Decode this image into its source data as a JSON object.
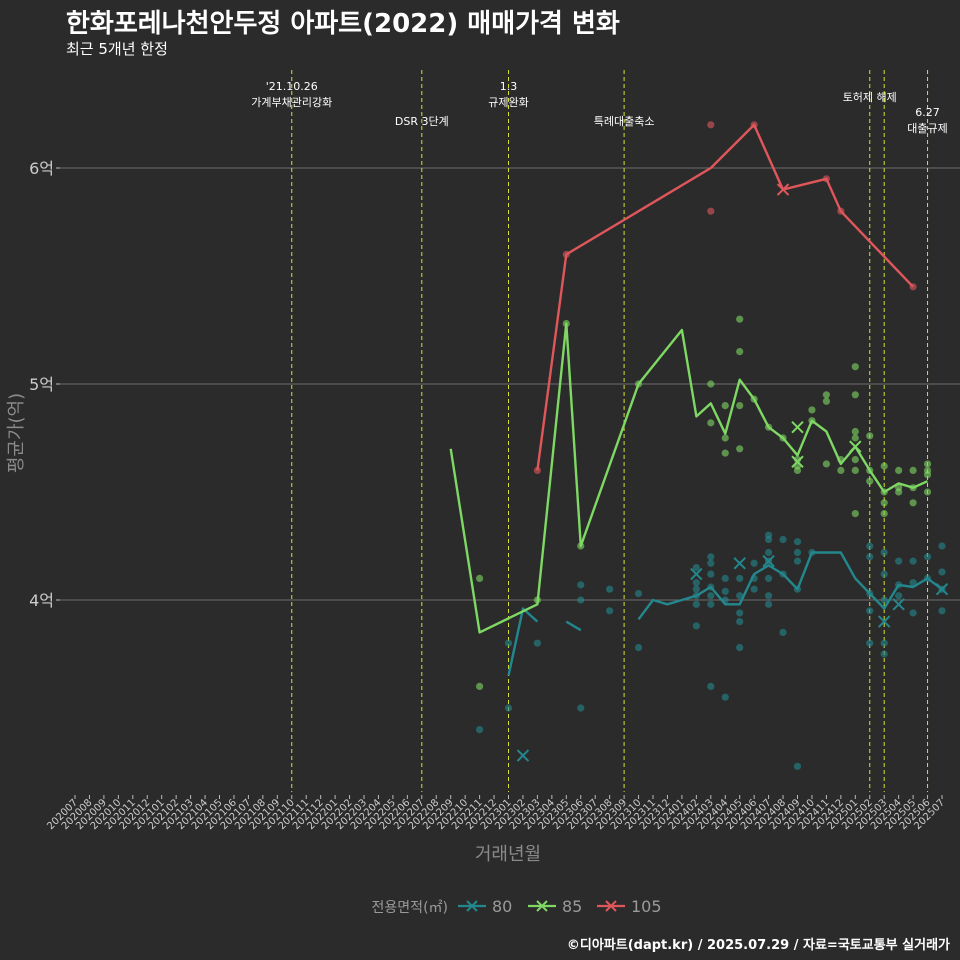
{
  "title": "한화포레나천안두정 아파트(2022) 매매가격 변화",
  "subtitle": "최근 5개년 한정",
  "caption": "©디아파트(dapt.kr) / 2025.07.29 / 자료=국토교통부 실거래가",
  "colors": {
    "background": "#2b2b2b",
    "grid": "#6e6e6e",
    "event_line": "#d4e030",
    "s80": "#23888e",
    "s85": "#7ed863",
    "s105": "#e0575b"
  },
  "chart_data": {
    "type": "line",
    "xlabel": "거래년월",
    "ylabel": "평균가(억)",
    "x_categories": [
      "202007",
      "202008",
      "202009",
      "202010",
      "202011",
      "202012",
      "202101",
      "202102",
      "202103",
      "202104",
      "202105",
      "202106",
      "202107",
      "202108",
      "202109",
      "202110",
      "202111",
      "202112",
      "202201",
      "202202",
      "202203",
      "202204",
      "202205",
      "202206",
      "202207",
      "202208",
      "202209",
      "202210",
      "202211",
      "202212",
      "202301",
      "202302",
      "202303",
      "202304",
      "202305",
      "202306",
      "202307",
      "202308",
      "202309",
      "202310",
      "202311",
      "202312",
      "202401",
      "202402",
      "202403",
      "202404",
      "202405",
      "202406",
      "202407",
      "202408",
      "202409",
      "202410",
      "202411",
      "202412",
      "202501",
      "202502",
      "202503",
      "202504",
      "202505",
      "202506",
      "202507"
    ],
    "y_ticks": [
      {
        "value": 4,
        "label": "4억"
      },
      {
        "value": 5,
        "label": "5억"
      },
      {
        "value": 6,
        "label": "6억"
      }
    ],
    "ylim": [
      3.1,
      6.45
    ],
    "grid": true,
    "legend": {
      "title": "전용면적(㎡)",
      "position": "bottom",
      "entries": [
        "80",
        "85",
        "105"
      ]
    },
    "events": [
      {
        "month": "202110",
        "label": [
          "'21.10.26",
          "가계부채관리강화"
        ],
        "label_y": 6.36
      },
      {
        "month": "202207",
        "label": [
          "DSR 3단계"
        ],
        "label_y": 6.2
      },
      {
        "month": "202301",
        "label": [
          "1.3",
          "규제완화"
        ],
        "label_y": 6.36
      },
      {
        "month": "202309",
        "label": [
          "특례대출축소"
        ],
        "label_y": 6.2
      },
      {
        "month": "202502",
        "label": [
          "토허제 해제"
        ],
        "label_y": 6.31
      },
      {
        "month": "202503",
        "label": [],
        "label_y": 6.31
      },
      {
        "month": "202506",
        "label": [
          "6.27",
          "대출규제"
        ],
        "label_y": 6.24
      }
    ],
    "series": [
      {
        "name": "80",
        "color_key": "s80",
        "line": [
          [
            "202301",
            3.65
          ],
          [
            "202302",
            3.96
          ],
          [
            "202303",
            3.9
          ],
          null,
          [
            "202305",
            3.9
          ],
          [
            "202306",
            3.86
          ],
          null,
          [
            "202310",
            3.91
          ],
          [
            "202311",
            4.0
          ],
          [
            "202312",
            3.98
          ],
          [
            "202401",
            4.0
          ],
          [
            "202402",
            4.02
          ],
          [
            "202403",
            4.06
          ],
          [
            "202404",
            3.98
          ],
          [
            "202405",
            3.98
          ],
          [
            "202406",
            4.12
          ],
          [
            "202407",
            4.16
          ],
          [
            "202408",
            4.12
          ],
          [
            "202409",
            4.05
          ],
          [
            "202410",
            4.22
          ],
          [
            "202412",
            4.22
          ],
          [
            "202501",
            4.1
          ],
          [
            "202502",
            4.03
          ],
          [
            "202503",
            3.96
          ],
          [
            "202504",
            4.07
          ],
          [
            "202505",
            4.06
          ],
          [
            "202506",
            4.1
          ],
          [
            "202507",
            4.05
          ]
        ],
        "points": [
          [
            "202211",
            3.4
          ],
          [
            "202301",
            3.5
          ],
          [
            "202301",
            3.8
          ],
          [
            "202303",
            3.8
          ],
          [
            "202306",
            3.5
          ],
          [
            "202306",
            4.0
          ],
          [
            "202306",
            4.07
          ],
          [
            "202308",
            4.05
          ],
          [
            "202308",
            3.95
          ],
          [
            "202310",
            3.78
          ],
          [
            "202310",
            4.03
          ],
          [
            "202402",
            3.88
          ],
          [
            "202402",
            3.98
          ],
          [
            "202402",
            4.02
          ],
          [
            "202402",
            4.05
          ],
          [
            "202402",
            4.08
          ],
          [
            "202402",
            4.15
          ],
          [
            "202403",
            3.6
          ],
          [
            "202403",
            3.98
          ],
          [
            "202403",
            4.02
          ],
          [
            "202403",
            4.06
          ],
          [
            "202403",
            4.12
          ],
          [
            "202403",
            4.17
          ],
          [
            "202403",
            4.2
          ],
          [
            "202404",
            3.55
          ],
          [
            "202404",
            4.0
          ],
          [
            "202404",
            4.04
          ],
          [
            "202404",
            4.1
          ],
          [
            "202405",
            3.78
          ],
          [
            "202405",
            3.9
          ],
          [
            "202405",
            3.94
          ],
          [
            "202405",
            4.02
          ],
          [
            "202405",
            4.1
          ],
          [
            "202406",
            4.05
          ],
          [
            "202406",
            4.1
          ],
          [
            "202406",
            4.17
          ],
          [
            "202407",
            3.98
          ],
          [
            "202407",
            4.02
          ],
          [
            "202407",
            4.1
          ],
          [
            "202407",
            4.18
          ],
          [
            "202407",
            4.22
          ],
          [
            "202407",
            4.28
          ],
          [
            "202407",
            4.3
          ],
          [
            "202408",
            3.85
          ],
          [
            "202408",
            4.12
          ],
          [
            "202408",
            4.28
          ],
          [
            "202409",
            3.23
          ],
          [
            "202409",
            4.05
          ],
          [
            "202409",
            4.18
          ],
          [
            "202409",
            4.22
          ],
          [
            "202409",
            4.27
          ],
          [
            "202410",
            4.22
          ],
          [
            "202502",
            3.8
          ],
          [
            "202502",
            3.95
          ],
          [
            "202502",
            4.03
          ],
          [
            "202502",
            4.2
          ],
          [
            "202502",
            4.25
          ],
          [
            "202503",
            3.75
          ],
          [
            "202503",
            3.8
          ],
          [
            "202503",
            4.0
          ],
          [
            "202503",
            4.12
          ],
          [
            "202503",
            4.22
          ],
          [
            "202504",
            4.02
          ],
          [
            "202504",
            4.07
          ],
          [
            "202504",
            4.18
          ],
          [
            "202505",
            3.94
          ],
          [
            "202505",
            4.08
          ],
          [
            "202505",
            4.18
          ],
          [
            "202506",
            4.1
          ],
          [
            "202506",
            4.2
          ],
          [
            "202507",
            3.95
          ],
          [
            "202507",
            4.05
          ],
          [
            "202507",
            4.13
          ],
          [
            "202507",
            4.25
          ]
        ],
        "crosses": [
          [
            "202302",
            3.28
          ],
          [
            "202402",
            4.12
          ],
          [
            "202405",
            4.17
          ],
          [
            "202407",
            4.18
          ],
          [
            "202503",
            3.9
          ],
          [
            "202504",
            3.98
          ],
          [
            "202507",
            4.05
          ]
        ]
      },
      {
        "name": "85",
        "color_key": "s85",
        "line": [
          [
            "202209",
            4.7
          ],
          [
            "202211",
            3.85
          ],
          [
            "202303",
            3.98
          ],
          [
            "202305",
            5.28
          ],
          [
            "202306",
            4.25
          ],
          [
            "202310",
            5.0
          ],
          [
            "202401",
            5.25
          ],
          [
            "202402",
            4.85
          ],
          [
            "202403",
            4.91
          ],
          [
            "202404",
            4.77
          ],
          [
            "202405",
            5.02
          ],
          [
            "202406",
            4.93
          ],
          [
            "202407",
            4.8
          ],
          [
            "202408",
            4.75
          ],
          [
            "202409",
            4.67
          ],
          [
            "202410",
            4.83
          ],
          [
            "202411",
            4.78
          ],
          [
            "202412",
            4.63
          ],
          [
            "202501",
            4.71
          ],
          [
            "202502",
            4.6
          ],
          [
            "202503",
            4.5
          ],
          [
            "202504",
            4.54
          ],
          [
            "202505",
            4.52
          ],
          [
            "202506",
            4.55
          ]
        ],
        "points": [
          [
            "202211",
            4.1
          ],
          [
            "202211",
            3.6
          ],
          [
            "202303",
            4.0
          ],
          [
            "202305",
            5.28
          ],
          [
            "202306",
            4.25
          ],
          [
            "202310",
            5.0
          ],
          [
            "202403",
            5.0
          ],
          [
            "202403",
            4.82
          ],
          [
            "202404",
            4.75
          ],
          [
            "202404",
            4.9
          ],
          [
            "202404",
            4.68
          ],
          [
            "202405",
            5.3
          ],
          [
            "202405",
            5.15
          ],
          [
            "202405",
            4.9
          ],
          [
            "202405",
            4.7
          ],
          [
            "202406",
            4.93
          ],
          [
            "202407",
            4.8
          ],
          [
            "202408",
            4.75
          ],
          [
            "202409",
            4.62
          ],
          [
            "202409",
            4.6
          ],
          [
            "202409",
            4.65
          ],
          [
            "202410",
            4.88
          ],
          [
            "202410",
            4.83
          ],
          [
            "202411",
            4.95
          ],
          [
            "202411",
            4.92
          ],
          [
            "202411",
            4.63
          ],
          [
            "202412",
            4.6
          ],
          [
            "202412",
            4.65
          ],
          [
            "202501",
            4.4
          ],
          [
            "202501",
            4.6
          ],
          [
            "202501",
            4.65
          ],
          [
            "202501",
            4.75
          ],
          [
            "202501",
            4.78
          ],
          [
            "202501",
            4.95
          ],
          [
            "202501",
            5.08
          ],
          [
            "202502",
            4.55
          ],
          [
            "202502",
            4.6
          ],
          [
            "202502",
            4.76
          ],
          [
            "202503",
            4.4
          ],
          [
            "202503",
            4.45
          ],
          [
            "202503",
            4.5
          ],
          [
            "202503",
            4.62
          ],
          [
            "202504",
            4.5
          ],
          [
            "202504",
            4.52
          ],
          [
            "202504",
            4.6
          ],
          [
            "202505",
            4.45
          ],
          [
            "202505",
            4.52
          ],
          [
            "202505",
            4.6
          ],
          [
            "202506",
            4.5
          ],
          [
            "202506",
            4.58
          ],
          [
            "202506",
            4.6
          ],
          [
            "202506",
            4.63
          ]
        ],
        "crosses": [
          [
            "202409",
            4.8
          ],
          [
            "202409",
            4.64
          ],
          [
            "202501",
            4.71
          ]
        ]
      },
      {
        "name": "105",
        "color_key": "s105",
        "line": [
          [
            "202303",
            4.6
          ],
          [
            "202305",
            5.6
          ],
          [
            "202403",
            6.0
          ],
          [
            "202406",
            6.2
          ],
          [
            "202408",
            5.9
          ],
          [
            "202411",
            5.95
          ],
          [
            "202412",
            5.8
          ],
          [
            "202505",
            5.45
          ]
        ],
        "points": [
          [
            "202303",
            4.6
          ],
          [
            "202305",
            5.6
          ],
          [
            "202403",
            6.2
          ],
          [
            "202403",
            5.8
          ],
          [
            "202406",
            6.2
          ],
          [
            "202411",
            5.95
          ],
          [
            "202412",
            5.8
          ],
          [
            "202505",
            5.45
          ]
        ],
        "crosses": [
          [
            "202408",
            5.9
          ]
        ]
      }
    ]
  }
}
